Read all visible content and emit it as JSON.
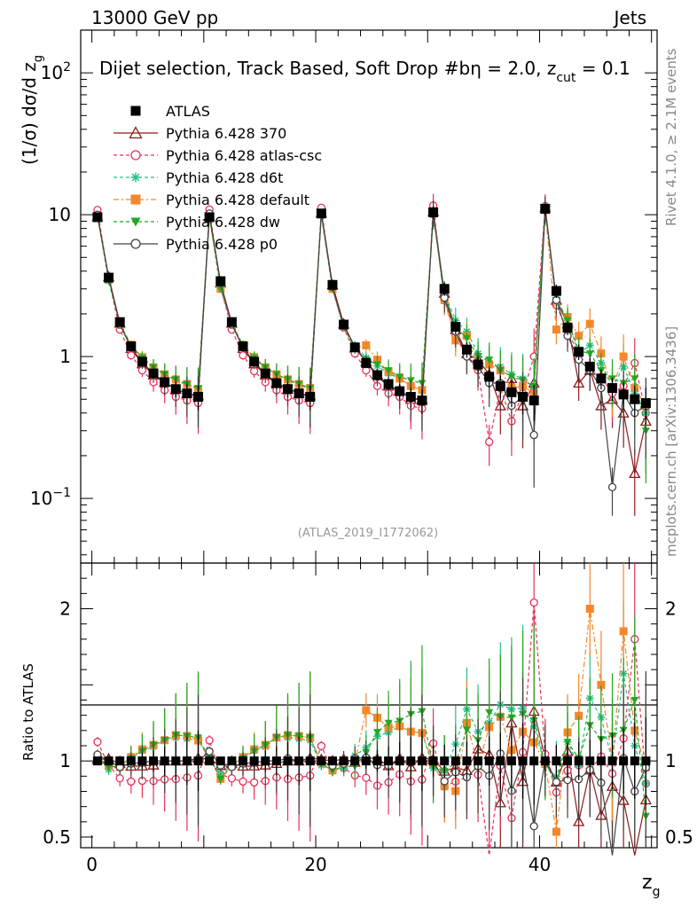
{
  "header": {
    "left_title": "13000 GeV pp",
    "right_title": "Jets",
    "plot_title_main": "Dijet selection, Track Based, Soft Drop #b",
    "plot_title_eta": "η = 2.0, z",
    "plot_title_cut_sub": "cut",
    "plot_title_end": " = 0.1",
    "analysis_id": "(ATLAS_2019_I1772062)",
    "side_rivet": "Rivet 4.1.0, ≥ 2.1M events",
    "side_mcplots": "mcplots.cern.ch [arXiv:1306.3436]"
  },
  "axes": {
    "y_label_main": "(1/σ) dσ/d z",
    "y_label_main_sub": "g",
    "y_label_ratio": "Ratio to ATLAS",
    "x_label": "z",
    "x_label_sub": "g",
    "main_ticks": [
      {
        "label": "10",
        "sup": "2",
        "value": 100
      },
      {
        "label": "10",
        "sup": "",
        "value": 10
      },
      {
        "label": "1",
        "sup": "",
        "value": 1
      },
      {
        "label": "10",
        "sup": "−1",
        "value": 0.1
      }
    ],
    "ratio_ticks": [
      {
        "label": "2",
        "value": 2
      },
      {
        "label": "1",
        "value": 1
      },
      {
        "label": "0.5",
        "value": 0.5
      }
    ],
    "x_ticks": [
      {
        "label": "0",
        "value": 0
      },
      {
        "label": "20",
        "value": 20
      },
      {
        "label": "40",
        "value": 40
      }
    ]
  },
  "chart_data": {
    "type": "scatter",
    "title": "Dijet selection, Track Based, Soft Drop #bη = 2.0, z_cut = 0.1",
    "xlabel": "z_g",
    "ylabel": "(1/σ) dσ/d z_g",
    "xlim": [
      -1,
      50.5
    ],
    "ylim": [
      0.035,
      200
    ],
    "yscale": "log",
    "ratio_ylim": [
      0.43,
      2.3
    ],
    "x": [
      0.5,
      1.5,
      2.5,
      3.5,
      4.5,
      5.5,
      6.5,
      7.5,
      8.5,
      9.5,
      10.5,
      11.5,
      12.5,
      13.5,
      14.5,
      15.5,
      16.5,
      17.5,
      18.5,
      19.5,
      20.5,
      21.5,
      22.5,
      23.5,
      24.5,
      25.5,
      26.5,
      27.5,
      28.5,
      29.5,
      30.5,
      31.5,
      32.5,
      33.5,
      34.5,
      35.5,
      36.5,
      37.5,
      38.5,
      39.5,
      40.5,
      41.5,
      42.5,
      43.5,
      44.5,
      45.5,
      46.5,
      47.5,
      48.5,
      49.5
    ],
    "series": [
      {
        "name": "ATLAS",
        "color": "#000000",
        "marker": "square",
        "values": [
          9.6,
          3.6,
          1.75,
          1.18,
          0.92,
          0.76,
          0.66,
          0.59,
          0.55,
          0.52,
          9.6,
          3.4,
          1.75,
          1.18,
          0.92,
          0.76,
          0.65,
          0.59,
          0.55,
          0.52,
          10.2,
          3.2,
          1.68,
          1.16,
          0.9,
          0.74,
          0.64,
          0.57,
          0.52,
          0.49,
          10.4,
          3.0,
          1.62,
          1.12,
          0.88,
          0.72,
          0.62,
          0.56,
          0.52,
          0.49,
          11.0,
          2.9,
          1.6,
          1.08,
          0.85,
          0.7,
          0.6,
          0.54,
          0.5,
          0.47
        ]
      },
      {
        "name": "Pythia 6.428 370",
        "color": "#8b1a1a",
        "marker": "triangle-open",
        "values": [
          9.7,
          3.65,
          1.72,
          1.14,
          0.89,
          0.74,
          0.66,
          0.59,
          0.55,
          0.53,
          9.7,
          3.3,
          1.72,
          1.14,
          0.89,
          0.74,
          0.64,
          0.59,
          0.55,
          0.53,
          10.3,
          3.2,
          1.7,
          1.15,
          0.92,
          0.75,
          0.62,
          0.58,
          0.5,
          0.5,
          10.5,
          2.8,
          1.55,
          1.05,
          0.95,
          0.75,
          0.45,
          0.7,
          0.45,
          0.65,
          11.2,
          2.5,
          1.7,
          0.65,
          0.8,
          0.45,
          0.5,
          0.4,
          0.15,
          0.35
        ]
      },
      {
        "name": "Pythia 6.428 atlas-csc",
        "color": "#e8305a",
        "marker": "circle-open",
        "values": [
          10.8,
          3.5,
          1.55,
          1.02,
          0.8,
          0.66,
          0.58,
          0.52,
          0.49,
          0.47,
          10.9,
          3.1,
          1.55,
          1.02,
          0.79,
          0.66,
          0.58,
          0.52,
          0.49,
          0.47,
          11.2,
          3.0,
          1.6,
          1.05,
          0.8,
          0.62,
          0.55,
          0.52,
          0.45,
          0.43,
          11.6,
          2.5,
          1.4,
          1.0,
          0.8,
          0.25,
          0.6,
          0.35,
          0.55,
          1.0,
          11.5,
          2.3,
          1.5,
          1.05,
          0.8,
          0.72,
          0.55,
          0.62,
          0.9,
          0.4
        ]
      },
      {
        "name": "Pythia 6.428 d6t",
        "color": "#22c08a",
        "marker": "star",
        "values": [
          9.9,
          3.4,
          1.7,
          1.21,
          0.98,
          0.83,
          0.75,
          0.68,
          0.63,
          0.59,
          9.7,
          3.1,
          1.7,
          1.21,
          0.98,
          0.83,
          0.75,
          0.68,
          0.63,
          0.59,
          9.9,
          3.0,
          1.6,
          1.2,
          0.98,
          0.86,
          0.76,
          0.7,
          0.62,
          0.58,
          9.9,
          2.8,
          1.8,
          1.5,
          1.05,
          0.9,
          0.85,
          0.75,
          0.7,
          0.6,
          10.7,
          2.6,
          1.8,
          1.05,
          1.2,
          0.9,
          0.6,
          0.85,
          0.55,
          0.4
        ]
      },
      {
        "name": "Pythia 6.428 default",
        "color": "#f5872a",
        "marker": "square",
        "values": [
          9.8,
          3.5,
          1.68,
          1.21,
          0.99,
          0.84,
          0.75,
          0.69,
          0.64,
          0.59,
          9.8,
          3.0,
          1.69,
          1.21,
          0.99,
          0.84,
          0.75,
          0.69,
          0.64,
          0.6,
          10.1,
          3.0,
          1.65,
          1.15,
          1.2,
          0.95,
          0.78,
          0.7,
          0.62,
          0.58,
          10.2,
          2.5,
          1.3,
          1.4,
          0.85,
          0.88,
          0.8,
          0.6,
          0.62,
          0.55,
          10.8,
          1.55,
          1.9,
          1.4,
          1.7,
          1.05,
          0.6,
          1.0,
          0.6,
          0.45
        ]
      },
      {
        "name": "Pythia 6.428 dw",
        "color": "#22a822",
        "marker": "triangle-down",
        "values": [
          9.9,
          3.45,
          1.7,
          1.2,
          0.98,
          0.84,
          0.75,
          0.69,
          0.64,
          0.6,
          9.8,
          3.0,
          1.7,
          1.2,
          0.98,
          0.84,
          0.75,
          0.69,
          0.64,
          0.6,
          10.0,
          3.0,
          1.62,
          1.12,
          0.95,
          0.88,
          0.8,
          0.72,
          0.68,
          0.65,
          10.0,
          2.8,
          1.6,
          1.35,
          1.0,
          0.95,
          0.8,
          0.72,
          0.68,
          0.62,
          10.8,
          2.5,
          1.8,
          1.1,
          1.05,
          0.8,
          0.7,
          0.65,
          0.7,
          0.3
        ]
      },
      {
        "name": "Pythia 6.428 p0",
        "color": "#444444",
        "marker": "circle-open",
        "values": [
          10.0,
          3.6,
          1.68,
          1.16,
          0.91,
          0.76,
          0.66,
          0.59,
          0.55,
          0.52,
          10.2,
          3.3,
          1.68,
          1.16,
          0.91,
          0.76,
          0.65,
          0.6,
          0.55,
          0.52,
          10.2,
          3.1,
          1.65,
          1.18,
          0.92,
          0.72,
          0.62,
          0.57,
          0.52,
          0.49,
          10.4,
          2.6,
          1.5,
          1.0,
          0.85,
          0.65,
          0.65,
          0.45,
          0.52,
          0.28,
          11.0,
          2.5,
          1.4,
          0.95,
          0.8,
          0.6,
          0.12,
          0.55,
          0.4,
          0.45
        ]
      }
    ]
  }
}
